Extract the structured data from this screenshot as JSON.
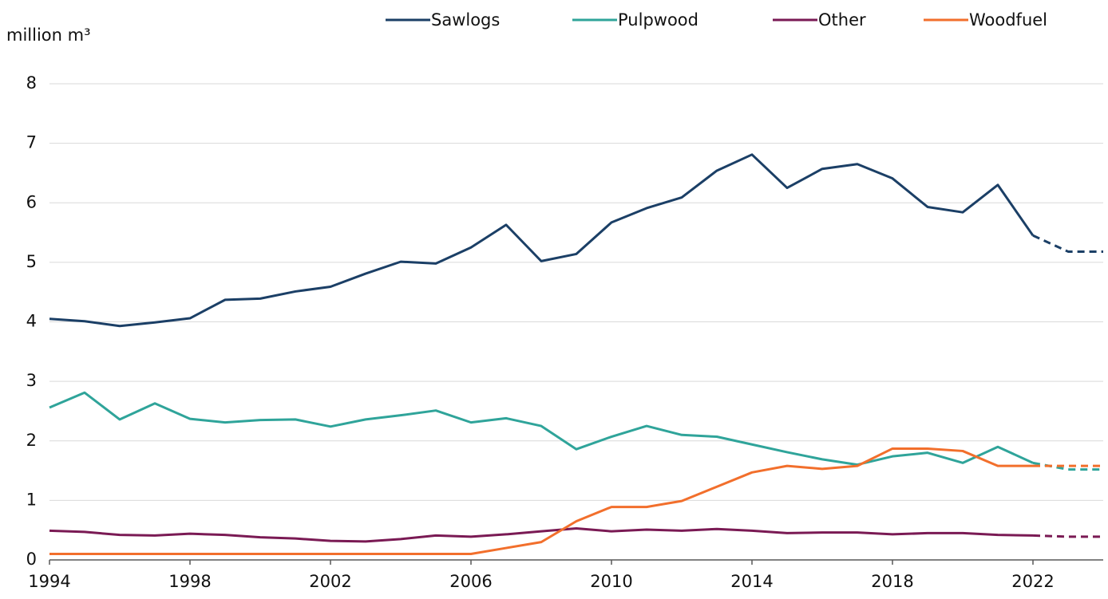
{
  "chart_data": {
    "type": "line",
    "y_label": "million m³",
    "x": [
      1994,
      1995,
      1996,
      1997,
      1998,
      1999,
      2000,
      2001,
      2002,
      2003,
      2004,
      2005,
      2006,
      2007,
      2008,
      2009,
      2010,
      2011,
      2012,
      2013,
      2014,
      2015,
      2016,
      2017,
      2018,
      2019,
      2020,
      2021,
      2022,
      2023,
      2024
    ],
    "series": [
      {
        "name": "Sawlogs",
        "color": "#1b3f66",
        "values": [
          4.05,
          4.01,
          3.93,
          3.99,
          4.06,
          4.37,
          4.39,
          4.51,
          4.59,
          4.81,
          5.01,
          4.98,
          5.25,
          5.63,
          5.02,
          5.14,
          5.67,
          5.91,
          6.09,
          6.54,
          6.81,
          6.25,
          6.57,
          6.65,
          6.41,
          5.93,
          5.84,
          6.3,
          5.45,
          5.18,
          5.18
        ]
      },
      {
        "name": "Pulpwood",
        "color": "#2fa49a",
        "values": [
          2.56,
          2.81,
          2.36,
          2.63,
          2.37,
          2.31,
          2.35,
          2.36,
          2.24,
          2.36,
          2.43,
          2.51,
          2.31,
          2.38,
          2.25,
          1.86,
          2.07,
          2.25,
          2.1,
          2.07,
          1.94,
          1.81,
          1.69,
          1.6,
          1.74,
          1.8,
          1.63,
          1.9,
          1.63,
          1.52,
          1.52
        ]
      },
      {
        "name": "Other",
        "color": "#7a1a54",
        "values": [
          0.49,
          0.47,
          0.42,
          0.41,
          0.44,
          0.42,
          0.38,
          0.36,
          0.32,
          0.31,
          0.35,
          0.41,
          0.39,
          0.43,
          0.48,
          0.53,
          0.48,
          0.51,
          0.49,
          0.52,
          0.49,
          0.45,
          0.46,
          0.46,
          0.43,
          0.45,
          0.45,
          0.42,
          0.41,
          0.39,
          0.39
        ]
      },
      {
        "name": "Woodfuel",
        "color": "#f26f2c",
        "values": [
          0.1,
          0.1,
          0.1,
          0.1,
          0.1,
          0.1,
          0.1,
          0.1,
          0.1,
          0.1,
          0.1,
          0.1,
          0.1,
          0.2,
          0.3,
          0.65,
          0.89,
          0.89,
          0.99,
          1.23,
          1.47,
          1.58,
          1.53,
          1.58,
          1.87,
          1.87,
          1.83,
          1.58,
          1.58,
          1.58,
          1.58
        ]
      }
    ],
    "dashed_from": 2022,
    "xlim": [
      1994,
      2024
    ],
    "xticks": [
      1994,
      1998,
      2002,
      2006,
      2010,
      2014,
      2018,
      2022
    ],
    "ylim": [
      0,
      8
    ],
    "yticks": [
      0,
      1,
      2,
      3,
      4,
      5,
      6,
      7,
      8
    ],
    "grid": true,
    "legend": "top"
  }
}
